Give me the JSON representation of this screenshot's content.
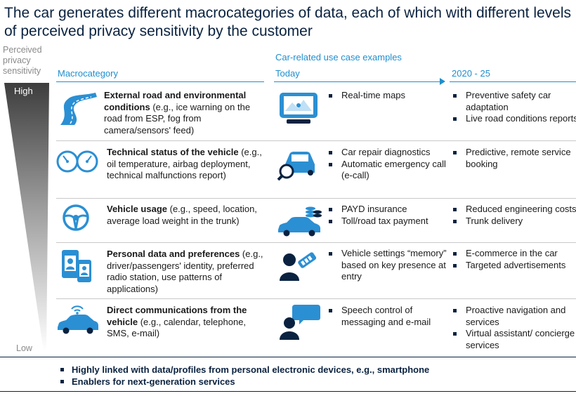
{
  "title": "The car generates different macrocategories of data, each of which with different levels of perceived privacy sensitivity by the customer",
  "sensitivity": {
    "label": "Perceived privacy sensitivity",
    "high": "High",
    "low": "Low"
  },
  "headers": {
    "macrocategory": "Macrocategory",
    "use_cases": "Car-related use case examples",
    "today": "Today",
    "future": "2020 - 25"
  },
  "rows": [
    {
      "icon": "road-icon",
      "title_bold": "External road and environmental conditions",
      "title_rest": " (e.g., ice warning on the road from ESP, fog from camera/sensors' feed)",
      "use_icon": "navigation-device-icon",
      "today": [
        "Real-time maps"
      ],
      "future": [
        "Preventive safety car adaptation",
        "Live road conditions reports"
      ]
    },
    {
      "icon": "gauges-icon",
      "title_bold": "Technical status of the vehicle",
      "title_rest": " (e.g., oil temperature, airbag deployment, technical malfunctions report)",
      "use_icon": "car-diagnostics-icon",
      "today": [
        "Car repair diagnostics",
        "Automatic emergency call (e-call)"
      ],
      "future": [
        "Predictive, remote service booking"
      ]
    },
    {
      "icon": "steering-wheel-icon",
      "title_bold": "Vehicle usage",
      "title_rest": " (e.g., speed, location, average load weight in the trunk)",
      "use_icon": "car-coins-icon",
      "today": [
        "PAYD insurance",
        "Toll/road tax payment"
      ],
      "future": [
        "Reduced engineering costs",
        "Trunk delivery"
      ]
    },
    {
      "icon": "identity-cards-icon",
      "title_bold": "Personal data and preferences",
      "title_rest": " (e.g., driver/passengers' identity, preferred radio station, use patterns of applications)",
      "use_icon": "person-key-icon",
      "today": [
        "Vehicle settings “memory” based on key presence at entry"
      ],
      "future": [
        "E-commerce in the car",
        "Targeted advertisements"
      ]
    },
    {
      "icon": "connected-car-icon",
      "title_bold": "Direct communications from the vehicle",
      "title_rest": " (e.g., calendar, telephone, SMS, e-mail)",
      "use_icon": "person-speech-icon",
      "today": [
        "Speech control of messaging and e-mail"
      ],
      "future": [
        "Proactive navigation and services",
        "Virtual assistant/ concierge services"
      ]
    }
  ],
  "footer": [
    "Highly linked with data/profiles from personal electronic devices, e.g., smartphone",
    "Enablers for next-generation services"
  ],
  "colors": {
    "navy": "#0a2240",
    "blue": "#1f8ecf",
    "icon_blue": "#2b8fd3",
    "grey": "#8a8a8a"
  }
}
